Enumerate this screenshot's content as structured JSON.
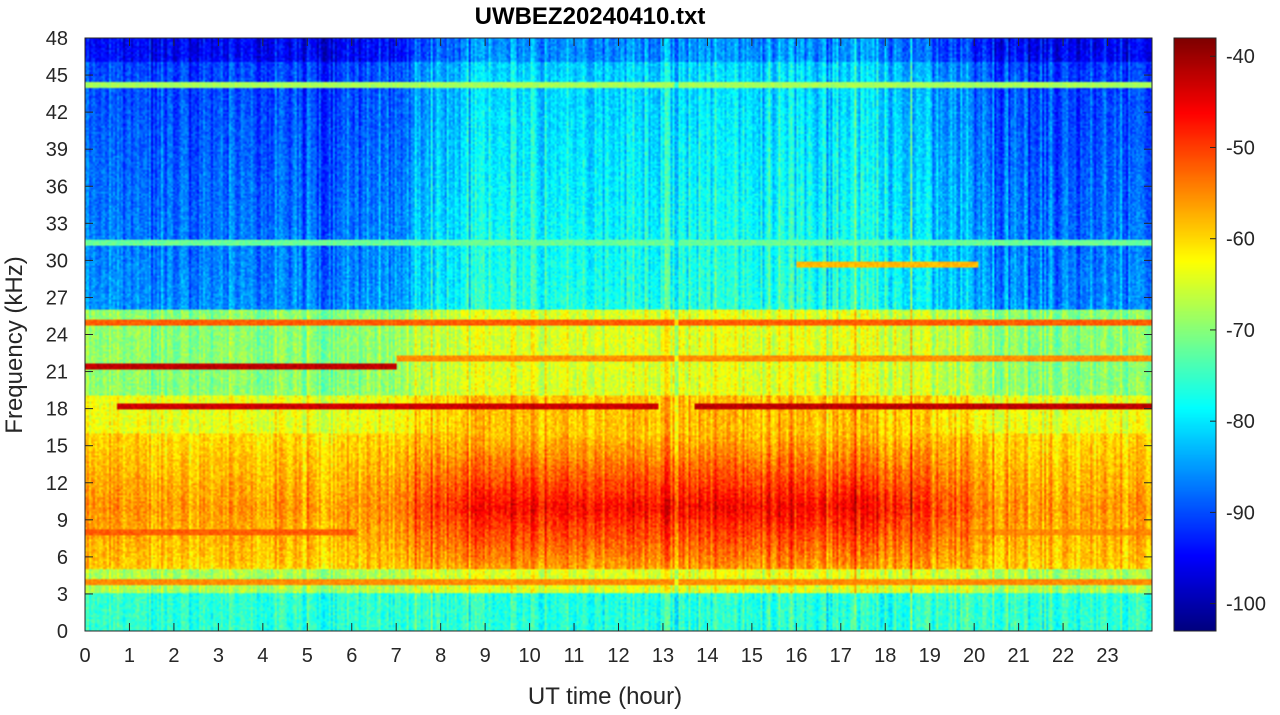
{
  "chart_data": {
    "type": "heatmap",
    "title": "UWBEZ20240410.txt",
    "xlabel": "UT time (hour)",
    "ylabel": "Frequency (kHz)",
    "xlim": [
      0,
      24
    ],
    "ylim": [
      0,
      48
    ],
    "x_ticks": [
      0,
      1,
      2,
      3,
      4,
      5,
      6,
      7,
      8,
      9,
      10,
      11,
      12,
      13,
      14,
      15,
      16,
      17,
      18,
      19,
      20,
      21,
      22,
      23
    ],
    "x_tick_labels": [
      "0",
      "1",
      "2",
      "3",
      "4",
      "5",
      "6",
      "7",
      "8",
      "9",
      "10",
      "11",
      "12",
      "13",
      "14",
      "15",
      "16",
      "17",
      "18",
      "19",
      "20",
      "21",
      "22",
      "23"
    ],
    "y_ticks": [
      0,
      3,
      6,
      9,
      12,
      15,
      18,
      21,
      24,
      27,
      30,
      33,
      36,
      39,
      42,
      45,
      48
    ],
    "y_tick_labels": [
      "0",
      "3",
      "6",
      "9",
      "12",
      "15",
      "18",
      "21",
      "24",
      "27",
      "30",
      "33",
      "36",
      "39",
      "42",
      "45",
      "48"
    ],
    "colorbar": {
      "colormap": "jet",
      "range": [
        -103,
        -38
      ],
      "ticks": [
        -40,
        -50,
        -60,
        -70,
        -80,
        -90,
        -100
      ],
      "tick_labels": [
        "-40",
        "-50",
        "-60",
        "-70",
        "-80",
        "-90",
        "-100"
      ]
    },
    "grid": false,
    "features": {
      "horizontal_lines": [
        {
          "freq": 44.2,
          "level": -68,
          "t_start": 0,
          "t_end": 24
        },
        {
          "freq": 25.0,
          "level": -52,
          "t_start": 0,
          "t_end": 24
        },
        {
          "freq": 21.4,
          "level": -42,
          "t_start": 0,
          "t_end": 7
        },
        {
          "freq": 18.2,
          "level": -43,
          "t_start": 0.7,
          "t_end": 12.9
        },
        {
          "freq": 18.2,
          "level": -42,
          "t_start": 13.7,
          "t_end": 24
        },
        {
          "freq": 22.0,
          "level": -55,
          "t_start": 7,
          "t_end": 24
        },
        {
          "freq": 4.0,
          "level": -55,
          "t_start": 0,
          "t_end": 24
        },
        {
          "freq": 8.0,
          "level": -52,
          "t_start": 0,
          "t_end": 6.1
        },
        {
          "freq": 8.0,
          "level": -55,
          "t_start": 19.5,
          "t_end": 24
        },
        {
          "freq": 31.5,
          "level": -72,
          "t_start": 0,
          "t_end": 24
        },
        {
          "freq": 29.7,
          "level": -58,
          "t_start": 16.0,
          "t_end": 20.1
        }
      ],
      "background_regions": [
        {
          "t_start": 0,
          "t_end": 6,
          "f_low": 28,
          "f_high": 48,
          "level": -85
        },
        {
          "t_start": 6,
          "t_end": 19.5,
          "f_low": 26,
          "f_high": 48,
          "level": -76
        },
        {
          "t_start": 19.5,
          "t_end": 24,
          "f_low": 28,
          "f_high": 48,
          "level": -86
        },
        {
          "t_start": 0,
          "t_end": 24,
          "f_low": 5,
          "f_high": 17,
          "level": -52
        }
      ]
    }
  }
}
